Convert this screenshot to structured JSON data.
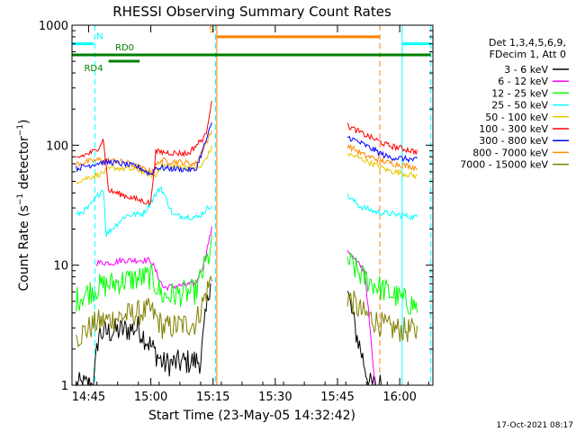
{
  "chart_data": {
    "type": "line",
    "title": "RHESSI Observing Summary Count Rates",
    "xlabel": "Start Time (23-May-05 14:32:42)",
    "ylabel": "Count Rate (s⁻¹ detector⁻¹)",
    "ylabel_main": "Count Rate (s",
    "ylabel_exp1": "−1",
    "ylabel_mid": " detector",
    "ylabel_exp2": "−1",
    "ylabel_end": ")",
    "y_scale": "log",
    "ylim": [
      1,
      1000
    ],
    "xlim_minutes": [
      14.6833,
      16.1333
    ],
    "x_ticks": [
      {
        "label": "14:45",
        "t": 14.75
      },
      {
        "label": "15:00",
        "t": 15.0
      },
      {
        "label": "15:15",
        "t": 15.25
      },
      {
        "label": "15:30",
        "t": 15.5
      },
      {
        "label": "15:45",
        "t": 15.75
      },
      {
        "label": "16:00",
        "t": 16.0
      }
    ],
    "y_ticks": [
      {
        "label": "1",
        "v": 1
      },
      {
        "label": "10",
        "v": 10
      },
      {
        "label": "100",
        "v": 100
      },
      {
        "label": "1000",
        "v": 1000
      }
    ],
    "legend": {
      "placement": "right",
      "header": [
        "Det 1,3,4,5,6,9,",
        "FDecim 1, Att 0"
      ]
    },
    "timestamp": "17-Oct-2021 08:17",
    "series": [
      {
        "name": "3 - 6 keV",
        "color": "#000000",
        "values": [
          [
            14.7,
            1.0
          ],
          [
            14.77,
            1.0
          ],
          [
            14.79,
            2.7
          ],
          [
            14.95,
            3.0
          ],
          [
            15.05,
            1.5
          ],
          [
            15.2,
            1.6
          ],
          [
            15.24,
            8.0
          ]
        ]
      },
      {
        "name": "6 - 12 keV",
        "color": "#ff00ff",
        "values": [
          [
            14.78,
            10.5
          ],
          [
            14.85,
            10.5
          ],
          [
            14.88,
            11.0
          ],
          [
            15.0,
            11.0
          ],
          [
            15.05,
            6.5
          ],
          [
            15.18,
            7.0
          ],
          [
            15.21,
            10.0
          ],
          [
            15.245,
            20.0
          ]
        ]
      },
      {
        "name": "12 - 25 keV",
        "color": "#00ff00",
        "values": [
          [
            14.7,
            5.2
          ],
          [
            14.78,
            6.5
          ],
          [
            14.9,
            7.5
          ],
          [
            15.0,
            8.0
          ],
          [
            15.05,
            5.5
          ],
          [
            15.18,
            6.0
          ],
          [
            15.245,
            14.0
          ]
        ]
      },
      {
        "name": "25 - 50 keV",
        "color": "#00ffff",
        "values": [
          [
            14.7,
            26.0
          ],
          [
            14.75,
            30.0
          ],
          [
            14.81,
            44.0
          ],
          [
            14.82,
            18.0
          ],
          [
            14.9,
            26.0
          ],
          [
            14.97,
            27.0
          ],
          [
            15.04,
            45.0
          ],
          [
            15.09,
            26.0
          ],
          [
            15.19,
            25.0
          ],
          [
            15.245,
            32.0
          ]
        ]
      },
      {
        "name": "50 - 100 keV",
        "color": "#e5c800",
        "values": [
          [
            14.7,
            50.0
          ],
          [
            14.8,
            58.0
          ],
          [
            14.85,
            65.0
          ],
          [
            14.95,
            62.0
          ],
          [
            15.02,
            55.0
          ],
          [
            15.04,
            68.0
          ],
          [
            15.2,
            65.0
          ],
          [
            15.245,
            95.0
          ]
        ]
      },
      {
        "name": "100 - 300 keV",
        "color": "#ff0000",
        "values": [
          [
            14.7,
            78.0
          ],
          [
            14.78,
            90.0
          ],
          [
            14.81,
            112.0
          ],
          [
            14.83,
            42.0
          ],
          [
            14.95,
            35.0
          ],
          [
            15.0,
            33.0
          ],
          [
            15.02,
            88.0
          ],
          [
            15.15,
            85.0
          ],
          [
            15.22,
            120.0
          ],
          [
            15.245,
            240.0
          ]
        ]
      },
      {
        "name": "300 - 800 keV",
        "color": "#0000ff",
        "values": [
          [
            14.7,
            64.0
          ],
          [
            14.8,
            72.0
          ],
          [
            14.85,
            72.0
          ],
          [
            14.95,
            66.0
          ],
          [
            15.0,
            57.0
          ],
          [
            15.02,
            65.0
          ],
          [
            15.18,
            62.0
          ],
          [
            15.245,
            150.0
          ]
        ]
      },
      {
        "name": "800 - 7000 keV",
        "color": "#ff8c00",
        "values": [
          [
            14.7,
            70.0
          ],
          [
            14.8,
            76.0
          ],
          [
            14.9,
            72.0
          ],
          [
            15.0,
            60.0
          ],
          [
            15.04,
            75.0
          ],
          [
            15.18,
            70.0
          ],
          [
            15.245,
            130.0
          ]
        ]
      },
      {
        "name": "7000 - 15000 keV",
        "color": "#808000",
        "values": [
          [
            14.7,
            2.5
          ],
          [
            14.78,
            3.3
          ],
          [
            14.9,
            3.8
          ],
          [
            15.0,
            4.2
          ],
          [
            15.05,
            3.0
          ],
          [
            15.18,
            3.3
          ],
          [
            15.245,
            8.0
          ]
        ]
      }
    ],
    "series_after_gap": [
      {
        "name": "3 - 6 keV",
        "values": [
          [
            15.79,
            6.0
          ],
          [
            15.82,
            3.0
          ],
          [
            15.88,
            1.0
          ],
          [
            15.93,
            1.0
          ]
        ]
      },
      {
        "name": "6 - 12 keV",
        "values": [
          [
            15.79,
            13.5
          ],
          [
            15.82,
            11.0
          ],
          [
            15.86,
            9.0
          ],
          [
            15.9,
            1.0
          ]
        ]
      },
      {
        "name": "12 - 25 keV",
        "values": [
          [
            15.79,
            11.0
          ],
          [
            15.85,
            8.0
          ],
          [
            15.95,
            6.0
          ],
          [
            16.07,
            4.5
          ]
        ]
      },
      {
        "name": "25 - 50 keV",
        "values": [
          [
            15.79,
            38.0
          ],
          [
            15.84,
            31.0
          ],
          [
            15.9,
            28.0
          ],
          [
            16.07,
            25.0
          ]
        ]
      },
      {
        "name": "50 - 100 keV",
        "values": [
          [
            15.79,
            85.0
          ],
          [
            15.86,
            75.0
          ],
          [
            15.95,
            62.0
          ],
          [
            16.07,
            55.0
          ]
        ]
      },
      {
        "name": "100 - 300 keV",
        "values": [
          [
            15.79,
            145.0
          ],
          [
            15.85,
            125.0
          ],
          [
            15.95,
            100.0
          ],
          [
            16.07,
            88.0
          ]
        ]
      },
      {
        "name": "300 - 800 keV",
        "values": [
          [
            15.79,
            118.0
          ],
          [
            15.86,
            100.0
          ],
          [
            15.95,
            80.0
          ],
          [
            16.07,
            75.0
          ]
        ]
      },
      {
        "name": "800 - 7000 keV",
        "values": [
          [
            15.79,
            100.0
          ],
          [
            15.86,
            82.0
          ],
          [
            15.95,
            72.0
          ],
          [
            16.07,
            65.0
          ]
        ]
      },
      {
        "name": "7000 - 15000 keV",
        "values": [
          [
            15.79,
            5.5
          ],
          [
            15.85,
            4.0
          ],
          [
            15.95,
            3.0
          ],
          [
            16.07,
            2.8
          ]
        ]
      }
    ],
    "flags": [
      {
        "label": "N",
        "color": "#00ffff",
        "level": 700,
        "start": 14.6833,
        "end": 14.77,
        "label_at": 14.795
      },
      {
        "label": "",
        "color": "#00ffff",
        "level": 700,
        "start": 16.01,
        "end": 16.125,
        "label_at": 0
      },
      {
        "label": "RD0",
        "color": "#008000",
        "level": 565,
        "start": 14.6833,
        "end": 16.125,
        "label_at": 14.895
      },
      {
        "label": "RD4",
        "color": "#008000",
        "level": 565,
        "start": 14.83,
        "end": 14.955,
        "label_at": 14.77,
        "offset": 23
      },
      {
        "label": "S",
        "color": "#ff8000",
        "level": 800,
        "start": 15.265,
        "end": 15.92,
        "label_at": 15.245
      }
    ],
    "vlines": [
      {
        "t": 14.6833,
        "color": "#00ffff",
        "style": "solid"
      },
      {
        "t": 14.775,
        "color": "#00ffff",
        "style": "dashed"
      },
      {
        "t": 15.26,
        "color": "#00ffff",
        "style": "dashed"
      },
      {
        "t": 15.265,
        "color": "#ff8000",
        "style": "solid"
      },
      {
        "t": 15.92,
        "color": "#ff8000",
        "style": "dashed"
      },
      {
        "t": 16.01,
        "color": "#00ffff",
        "style": "solid"
      },
      {
        "t": 16.125,
        "color": "#00ffff",
        "style": "dashed"
      }
    ]
  }
}
